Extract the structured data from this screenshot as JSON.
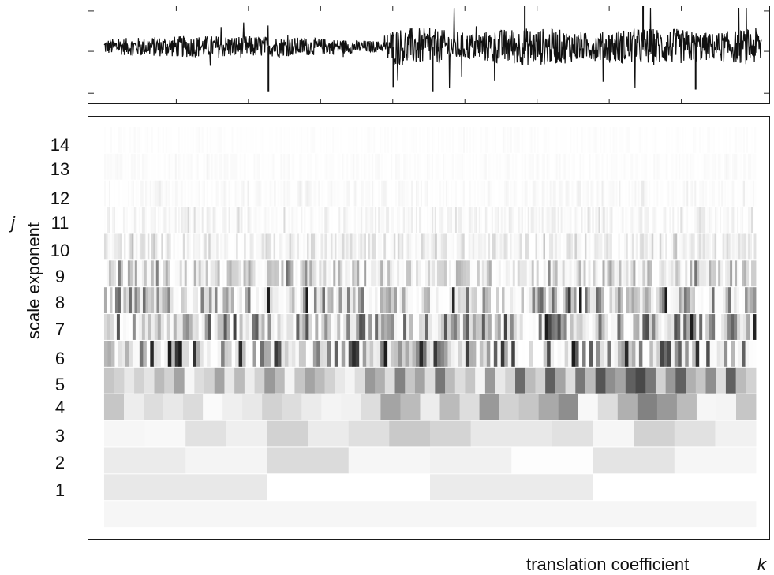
{
  "chart_data": [
    {
      "type": "line",
      "panel": "signal",
      "title": "",
      "xlabel": "",
      "ylabel": "",
      "x_ticks": 8,
      "y_ticks": 3,
      "grid": false,
      "series": [
        {
          "values": [],
          "color": "#111111"
        }
      ]
    },
    {
      "type": "heatmap",
      "panel": "scalogram",
      "title": "",
      "xlabel": "translation coefficient",
      "xlabel_symbol": "k",
      "ylabel": "scale exponent",
      "ylabel_symbol": "j",
      "y_tick_labels": [
        "14",
        "13",
        "12",
        "11",
        "10",
        "9",
        "8",
        "7",
        "6",
        "5",
        "4",
        "3",
        "2",
        "1"
      ],
      "colormap": [
        "#ffffff",
        "#1c1c1c"
      ],
      "rows": [
        {
          "label": "",
          "values": [
            0.04
          ]
        },
        {
          "label": "1",
          "values": [
            0.1,
            0.0,
            0.09,
            0.0
          ]
        },
        {
          "label": "2",
          "values": [
            0.09,
            0.05,
            0.16,
            0.04,
            0.06,
            0.01,
            0.12,
            0.04
          ]
        },
        {
          "label": "3",
          "values": [
            0.04,
            0.03,
            0.13,
            0.07,
            0.2,
            0.09,
            0.14,
            0.24,
            0.19,
            0.1,
            0.1,
            0.13,
            0.04,
            0.2,
            0.13,
            0.06
          ]
        },
        {
          "label": "4",
          "values": [
            0.25,
            0.08,
            0.15,
            0.1,
            0.16,
            0.02,
            0.07,
            0.1,
            0.2,
            0.15,
            0.09,
            0.05,
            0.06,
            0.15,
            0.4,
            0.3,
            0.08,
            0.3,
            0.15,
            0.45,
            0.2,
            0.25,
            0.38,
            0.5,
            0.03,
            0.15,
            0.35,
            0.55,
            0.45,
            0.3,
            0.04,
            0.05,
            0.25
          ]
        },
        {
          "label": "5",
          "values": [
            0.25,
            0.2,
            0.1,
            0.2,
            0.12,
            0.3,
            0.2,
            0.4,
            0.04,
            0.15,
            0.2,
            0.4,
            0.1,
            0.3,
            0.08,
            0.2,
            0.45,
            0.3,
            0.05,
            0.25,
            0.4,
            0.3,
            0.2,
            0.1,
            0.05,
            0.15,
            0.45,
            0.35,
            0.15,
            0.55,
            0.25,
            0.4,
            0.15,
            0.6,
            0.3,
            0.15,
            0.25,
            0.05,
            0.45,
            0.1,
            0.2,
            0.65,
            0.3,
            0.2,
            0.7,
            0.4,
            0.15,
            0.6,
            0.3,
            0.75,
            0.5,
            0.4,
            0.7,
            0.8,
            0.6,
            0.2,
            0.45,
            0.7,
            0.35,
            0.25,
            0.5,
            0.15,
            0.7,
            0.3,
            0.2
          ]
        },
        {
          "label": "6",
          "values": [],
          "intensity": 0.62,
          "bin": 4.5
        },
        {
          "label": "7",
          "values": [],
          "intensity": 0.52,
          "bin": 4
        },
        {
          "label": "8",
          "values": [],
          "intensity": 0.42,
          "bin": 3.5
        },
        {
          "label": "9",
          "values": [],
          "intensity": 0.24,
          "bin": 3
        },
        {
          "label": "10",
          "values": [],
          "intensity": 0.12,
          "bin": 2.5
        },
        {
          "label": "11",
          "values": [],
          "intensity": 0.06,
          "bin": 2
        },
        {
          "label": "12",
          "values": [],
          "intensity": 0.035,
          "bin": 2
        },
        {
          "label": "13",
          "values": [],
          "intensity": 0.02,
          "bin": 2
        },
        {
          "label": "14",
          "values": [],
          "intensity": 0.012,
          "bin": 2
        }
      ]
    }
  ]
}
